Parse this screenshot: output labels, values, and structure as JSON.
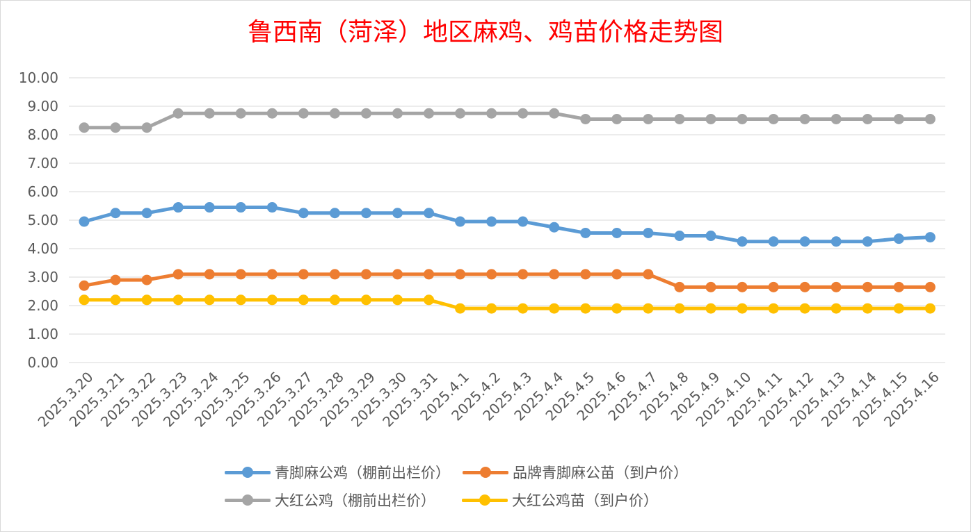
{
  "chart_data": {
    "type": "line",
    "title": "鲁西南（菏泽）地区麻鸡、鸡苗价格走势图",
    "xlabel": "",
    "ylabel": "",
    "ylim": [
      0,
      10
    ],
    "ytick_step": 1,
    "yticks": [
      "0.00",
      "1.00",
      "2.00",
      "3.00",
      "4.00",
      "5.00",
      "6.00",
      "7.00",
      "8.00",
      "9.00",
      "10.00"
    ],
    "grid": true,
    "legend_position": "bottom",
    "categories": [
      "2025.3.20",
      "2025.3.21",
      "2025.3.22",
      "2025.3.23",
      "2025.3.24",
      "2025.3.25",
      "2025.3.26",
      "2025.3.27",
      "2025.3.28",
      "2025.3.29",
      "2025.3.30",
      "2025.3.31",
      "2025.4.1",
      "2025.4.2",
      "2025.4.3",
      "2025.4.4",
      "2025.4.5",
      "2025.4.6",
      "2025.4.7",
      "2025.4.8",
      "2025.4.9",
      "2025.4.10",
      "2025.4.11",
      "2025.4.12",
      "2025.4.13",
      "2025.4.14",
      "2025.4.15",
      "2025.4.16"
    ],
    "series": [
      {
        "name": "青脚麻公鸡（棚前出栏价）",
        "color": "#5b9bd5",
        "values": [
          4.95,
          5.25,
          5.25,
          5.45,
          5.45,
          5.45,
          5.45,
          5.25,
          5.25,
          5.25,
          5.25,
          5.25,
          4.95,
          4.95,
          4.95,
          4.75,
          4.55,
          4.55,
          4.55,
          4.45,
          4.45,
          4.25,
          4.25,
          4.25,
          4.25,
          4.25,
          4.35,
          4.4
        ]
      },
      {
        "name": "品牌青脚麻公苗（到户价）",
        "color": "#ed7d31",
        "values": [
          2.7,
          2.9,
          2.9,
          3.1,
          3.1,
          3.1,
          3.1,
          3.1,
          3.1,
          3.1,
          3.1,
          3.1,
          3.1,
          3.1,
          3.1,
          3.1,
          3.1,
          3.1,
          3.1,
          2.65,
          2.65,
          2.65,
          2.65,
          2.65,
          2.65,
          2.65,
          2.65,
          2.65
        ]
      },
      {
        "name": "大红公鸡（棚前出栏价）",
        "color": "#a5a5a5",
        "values": [
          8.25,
          8.25,
          8.25,
          8.75,
          8.75,
          8.75,
          8.75,
          8.75,
          8.75,
          8.75,
          8.75,
          8.75,
          8.75,
          8.75,
          8.75,
          8.75,
          8.55,
          8.55,
          8.55,
          8.55,
          8.55,
          8.55,
          8.55,
          8.55,
          8.55,
          8.55,
          8.55,
          8.55
        ]
      },
      {
        "name": "大红公鸡苗（到户价）",
        "color": "#ffc000",
        "values": [
          2.2,
          2.2,
          2.2,
          2.2,
          2.2,
          2.2,
          2.2,
          2.2,
          2.2,
          2.2,
          2.2,
          2.2,
          1.9,
          1.9,
          1.9,
          1.9,
          1.9,
          1.9,
          1.9,
          1.9,
          1.9,
          1.9,
          1.9,
          1.9,
          1.9,
          1.9,
          1.9,
          1.9
        ]
      }
    ]
  }
}
